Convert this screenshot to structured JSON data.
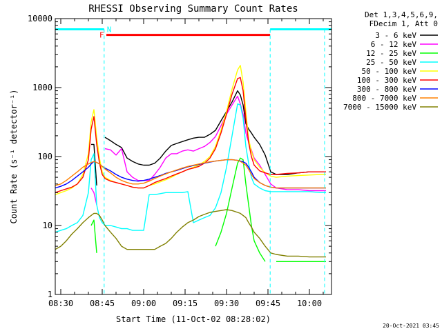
{
  "chart_data": {
    "type": "line",
    "title": "RHESSI Observing Summary Count Rates",
    "xlabel": "Start Time (11-Oct-02 08:28:02)",
    "ylabel": "Count Rate (s⁻¹ detector⁻¹)",
    "yscale": "log",
    "xlim_minutes": [
      0,
      100
    ],
    "ylim": [
      1,
      10000
    ],
    "x_ticks": [
      {
        "label": "08:30",
        "value": 2
      },
      {
        "label": "08:45",
        "value": 17
      },
      {
        "label": "09:00",
        "value": 32
      },
      {
        "label": "09:15",
        "value": 47
      },
      {
        "label": "09:30",
        "value": 62
      },
      {
        "label": "09:45",
        "value": 77
      },
      {
        "label": "10:00",
        "value": 92
      }
    ],
    "y_ticks": [
      {
        "label": "1",
        "value": 1
      },
      {
        "label": "10",
        "value": 10
      },
      {
        "label": "100",
        "value": 100
      },
      {
        "label": "1000",
        "value": 1000
      },
      {
        "label": "10000",
        "value": 10000
      }
    ],
    "legend_header": [
      "Det 1,3,4,5,6,9,",
      "FDecim 1, Att 0"
    ],
    "flags": {
      "night_label": "N",
      "flare_label": "F",
      "night_color": "#00ffff",
      "flare_color": "#ff0000",
      "night_intervals": [
        [
          0,
          17.7
        ],
        [
          77.8,
          100
        ]
      ],
      "flare_interval": [
        18.5,
        77.8
      ],
      "night_level": 7000,
      "flare_level": 5800,
      "saa_vertical_lines": [
        17.7,
        77.8,
        97.5
      ]
    },
    "x_sample_minutes": [
      0,
      2,
      4,
      6,
      8,
      10,
      12,
      13,
      14,
      15,
      16,
      17,
      18,
      20,
      22,
      24,
      26,
      28,
      30,
      32,
      34,
      36,
      38,
      40,
      42,
      44,
      46,
      48,
      50,
      52,
      54,
      56,
      58,
      60,
      62,
      64,
      66,
      67,
      68,
      69,
      70,
      71,
      72,
      74,
      76,
      78,
      80,
      84,
      88,
      92,
      96,
      98
    ],
    "series": [
      {
        "name": "3 - 6 keV",
        "color": "#000000",
        "values": [
          null,
          null,
          null,
          null,
          null,
          null,
          null,
          150,
          150,
          38,
          null,
          null,
          190,
          170,
          150,
          135,
          95,
          85,
          78,
          75,
          75,
          80,
          95,
          120,
          145,
          155,
          165,
          175,
          185,
          190,
          190,
          210,
          240,
          330,
          450,
          620,
          900,
          780,
          560,
          300,
          250,
          220,
          190,
          150,
          105,
          60,
          55,
          55,
          58,
          60,
          60,
          60
        ]
      },
      {
        "name": "6 - 12 keV",
        "color": "#ff00ff",
        "values": [
          null,
          null,
          null,
          null,
          null,
          null,
          null,
          35,
          30,
          20,
          null,
          null,
          130,
          125,
          105,
          130,
          60,
          50,
          45,
          45,
          45,
          55,
          70,
          95,
          110,
          110,
          120,
          125,
          120,
          130,
          140,
          160,
          195,
          280,
          410,
          560,
          750,
          580,
          410,
          220,
          160,
          125,
          95,
          75,
          55,
          40,
          35,
          33,
          33,
          32,
          32,
          32
        ]
      },
      {
        "name": "12 - 25 keV",
        "color": "#00ff00",
        "values": [
          null,
          null,
          null,
          null,
          null,
          null,
          null,
          10,
          12,
          4,
          null,
          null,
          null,
          null,
          null,
          null,
          null,
          null,
          null,
          null,
          null,
          null,
          null,
          null,
          null,
          null,
          null,
          null,
          null,
          null,
          null,
          null,
          5,
          8,
          15,
          35,
          80,
          95,
          90,
          40,
          20,
          10,
          6,
          4,
          3,
          null,
          3,
          3,
          3,
          3,
          3,
          3
        ]
      },
      {
        "name": "25 - 50 keV",
        "color": "#00ffff",
        "values": [
          8,
          8.5,
          9,
          10,
          11,
          14,
          30,
          90,
          110,
          20,
          13,
          11,
          10,
          10,
          9.5,
          9,
          9,
          8.5,
          8.5,
          8.5,
          28,
          28,
          29,
          30,
          30,
          30,
          30,
          31,
          11,
          12,
          13,
          14,
          18,
          30,
          70,
          200,
          580,
          560,
          360,
          140,
          80,
          50,
          40,
          35,
          32,
          31,
          31,
          31,
          31,
          31,
          30,
          30
        ]
      },
      {
        "name": "50 - 100 keV",
        "color": "#ffff00",
        "values": [
          28,
          30,
          32,
          35,
          40,
          55,
          110,
          320,
          480,
          190,
          95,
          60,
          50,
          45,
          42,
          40,
          38,
          36,
          35,
          35,
          38,
          40,
          43,
          46,
          50,
          55,
          60,
          65,
          70,
          75,
          85,
          100,
          140,
          240,
          450,
          950,
          1800,
          2100,
          1200,
          450,
          180,
          120,
          90,
          70,
          58,
          52,
          50,
          52,
          53,
          54,
          55,
          55
        ]
      },
      {
        "name": "100 - 300 keV",
        "color": "#ff0000",
        "values": [
          30,
          32,
          34,
          36,
          40,
          50,
          90,
          250,
          380,
          150,
          80,
          55,
          48,
          44,
          42,
          40,
          38,
          36,
          35,
          35,
          38,
          42,
          45,
          48,
          52,
          56,
          60,
          65,
          68,
          72,
          80,
          95,
          130,
          220,
          410,
          800,
          1350,
          1400,
          900,
          350,
          160,
          100,
          75,
          62,
          58,
          55,
          55,
          57,
          58,
          60,
          60,
          60
        ]
      },
      {
        "name": "300 - 800 keV",
        "color": "#0000ff",
        "values": [
          35,
          37,
          40,
          45,
          52,
          60,
          70,
          78,
          85,
          82,
          78,
          72,
          68,
          62,
          55,
          50,
          47,
          45,
          44,
          45,
          47,
          50,
          53,
          57,
          60,
          63,
          67,
          71,
          74,
          77,
          80,
          83,
          86,
          88,
          90,
          90,
          88,
          86,
          84,
          80,
          70,
          60,
          50,
          42,
          38,
          36,
          35,
          35,
          35,
          35,
          35,
          35
        ]
      },
      {
        "name": "800 - 7000 keV",
        "color": "#ff8000",
        "values": [
          38,
          40,
          45,
          52,
          60,
          70,
          78,
          82,
          85,
          82,
          78,
          72,
          66,
          58,
          50,
          45,
          42,
          40,
          40,
          41,
          44,
          48,
          52,
          56,
          60,
          64,
          68,
          72,
          75,
          78,
          81,
          84,
          86,
          88,
          90,
          90,
          88,
          85,
          80,
          75,
          65,
          55,
          48,
          42,
          38,
          36,
          35,
          35,
          35,
          35,
          35,
          35
        ]
      },
      {
        "name": "7000 - 15000 keV",
        "color": "#808000",
        "values": [
          4.5,
          5,
          6,
          7.5,
          9,
          11,
          13,
          14,
          15,
          15,
          14,
          12,
          10,
          8,
          6.5,
          5,
          4.5,
          4.5,
          4.5,
          4.5,
          4.5,
          4.5,
          5,
          5.5,
          6.5,
          8,
          9.5,
          11,
          12,
          13.5,
          14.5,
          15.5,
          16,
          16.5,
          17,
          16.5,
          15.5,
          15,
          14,
          13,
          11,
          9.5,
          8,
          6.5,
          5,
          4,
          3.8,
          3.6,
          3.6,
          3.5,
          3.5,
          3.5
        ]
      }
    ],
    "footer_date": "20-Oct-2021 03:45"
  }
}
